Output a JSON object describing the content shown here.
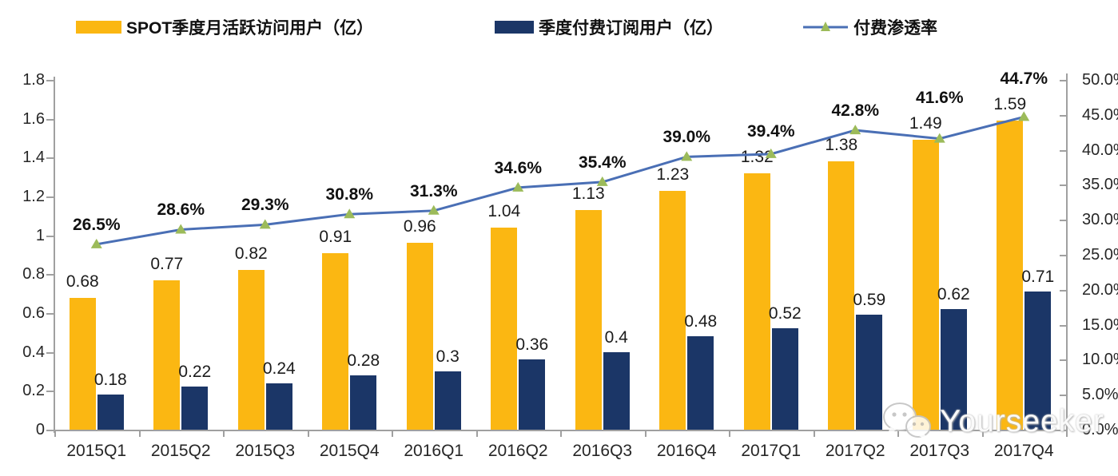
{
  "legend": [
    {
      "label": "SPOT季度月活跃访问用户（亿）",
      "type": "bar",
      "color": "#FBB712"
    },
    {
      "label": "季度付费订阅用户（亿）",
      "type": "bar",
      "color": "#1B3667"
    },
    {
      "label": "付费渗透率",
      "type": "line",
      "color": "#4A6FB5",
      "marker_color": "#9CBB5A"
    }
  ],
  "chart_data": {
    "type": "bar",
    "subtype": "grouped-bars-with-line-combo",
    "title": "",
    "categories": [
      "2015Q1",
      "2015Q2",
      "2015Q3",
      "2015Q4",
      "2016Q1",
      "2016Q2",
      "2016Q3",
      "2016Q4",
      "2017Q1",
      "2017Q2",
      "2017Q3",
      "2017Q4"
    ],
    "series": [
      {
        "name": "SPOT季度月活跃访问用户（亿）",
        "type": "bar",
        "axis": "left",
        "color": "#FBB712",
        "values": [
          0.68,
          0.77,
          0.82,
          0.91,
          0.96,
          1.04,
          1.13,
          1.23,
          1.32,
          1.38,
          1.49,
          1.59
        ],
        "labels": [
          "0.68",
          "0.77",
          "0.82",
          "0.91",
          "0.96",
          "1.04",
          "1.13",
          "1.23",
          "1.32",
          "1.38",
          "1.49",
          "1.59"
        ]
      },
      {
        "name": "季度付费订阅用户（亿）",
        "type": "bar",
        "axis": "left",
        "color": "#1B3667",
        "values": [
          0.18,
          0.22,
          0.24,
          0.28,
          0.3,
          0.36,
          0.4,
          0.48,
          0.52,
          0.59,
          0.62,
          0.71
        ],
        "labels": [
          "0.18",
          "0.22",
          "0.24",
          "0.28",
          "0.3",
          "0.36",
          "0.4",
          "0.48",
          "0.52",
          "0.59",
          "0.62",
          "0.71"
        ]
      },
      {
        "name": "付费渗透率",
        "type": "line",
        "axis": "right",
        "color": "#4A6FB5",
        "marker": "triangle",
        "marker_color": "#9CBB5A",
        "values": [
          26.5,
          28.6,
          29.3,
          30.8,
          31.3,
          34.6,
          35.4,
          39.0,
          39.4,
          42.8,
          41.6,
          44.7
        ],
        "labels": [
          "26.5%",
          "28.6%",
          "29.3%",
          "30.8%",
          "31.3%",
          "34.6%",
          "35.4%",
          "39.0%",
          "39.4%",
          "42.8%",
          "41.6%",
          "44.7%"
        ]
      }
    ],
    "left_axis": {
      "min": 0,
      "max": 1.8,
      "step": 0.2,
      "tick_labels": [
        "0",
        "0.2",
        "0.4",
        "0.6",
        "0.8",
        "1",
        "1.2",
        "1.4",
        "1.6",
        "1.8"
      ]
    },
    "right_axis": {
      "min": 0,
      "max": 50,
      "step": 5,
      "tick_labels": [
        "0.0%",
        "5.0%",
        "10.0%",
        "15.0%",
        "20.0%",
        "25.0%",
        "30.0%",
        "35.0%",
        "40.0%",
        "45.0%",
        "50.0%"
      ]
    },
    "grid": false,
    "legend_position": "top"
  },
  "watermark": {
    "text": "Yourseeker",
    "icon": "wechat-icon"
  }
}
